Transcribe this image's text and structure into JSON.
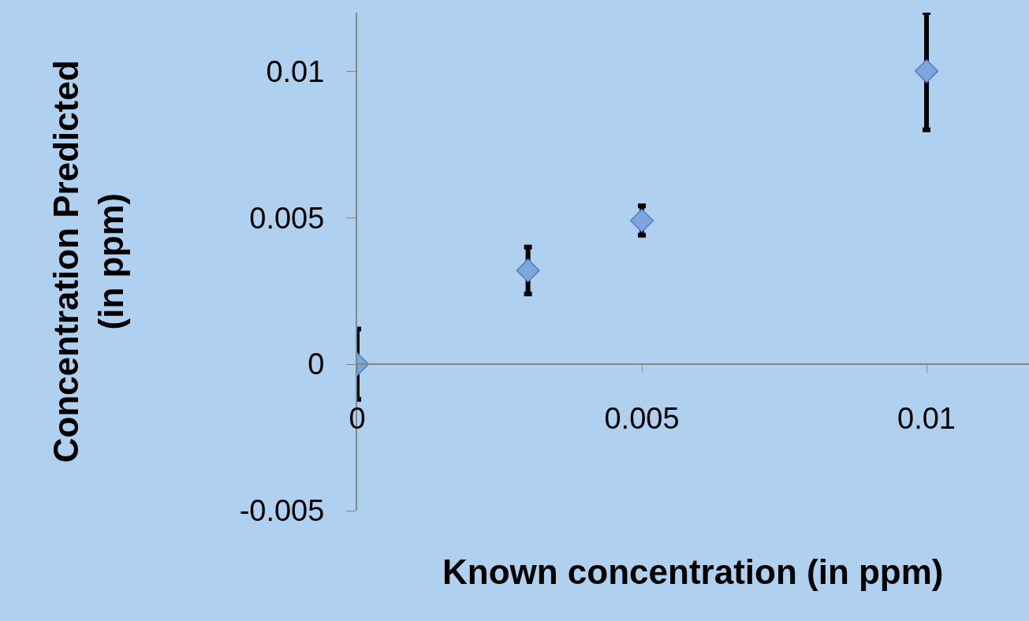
{
  "chart_data": {
    "type": "scatter",
    "xlabel": "Known concentration (in ppm)",
    "ylabel": "Concentration Predicted\n(in ppm)",
    "x": [
      0,
      0.003,
      0.005,
      0.01
    ],
    "series": [
      {
        "color": "#7ea6de",
        "values": [
          0,
          0.0032,
          0.0049,
          0.01
        ],
        "errors": [
          0.0012,
          0.0008,
          0.0005,
          0.002
        ]
      }
    ],
    "xlim": [
      0,
      0.0118
    ],
    "ylim": [
      -0.005,
      0.012
    ],
    "xticks": [
      0,
      0.005,
      0.01
    ],
    "yticks": [
      -0.005,
      0,
      0.005,
      0.01
    ],
    "marker": "diamond",
    "grid": false
  }
}
